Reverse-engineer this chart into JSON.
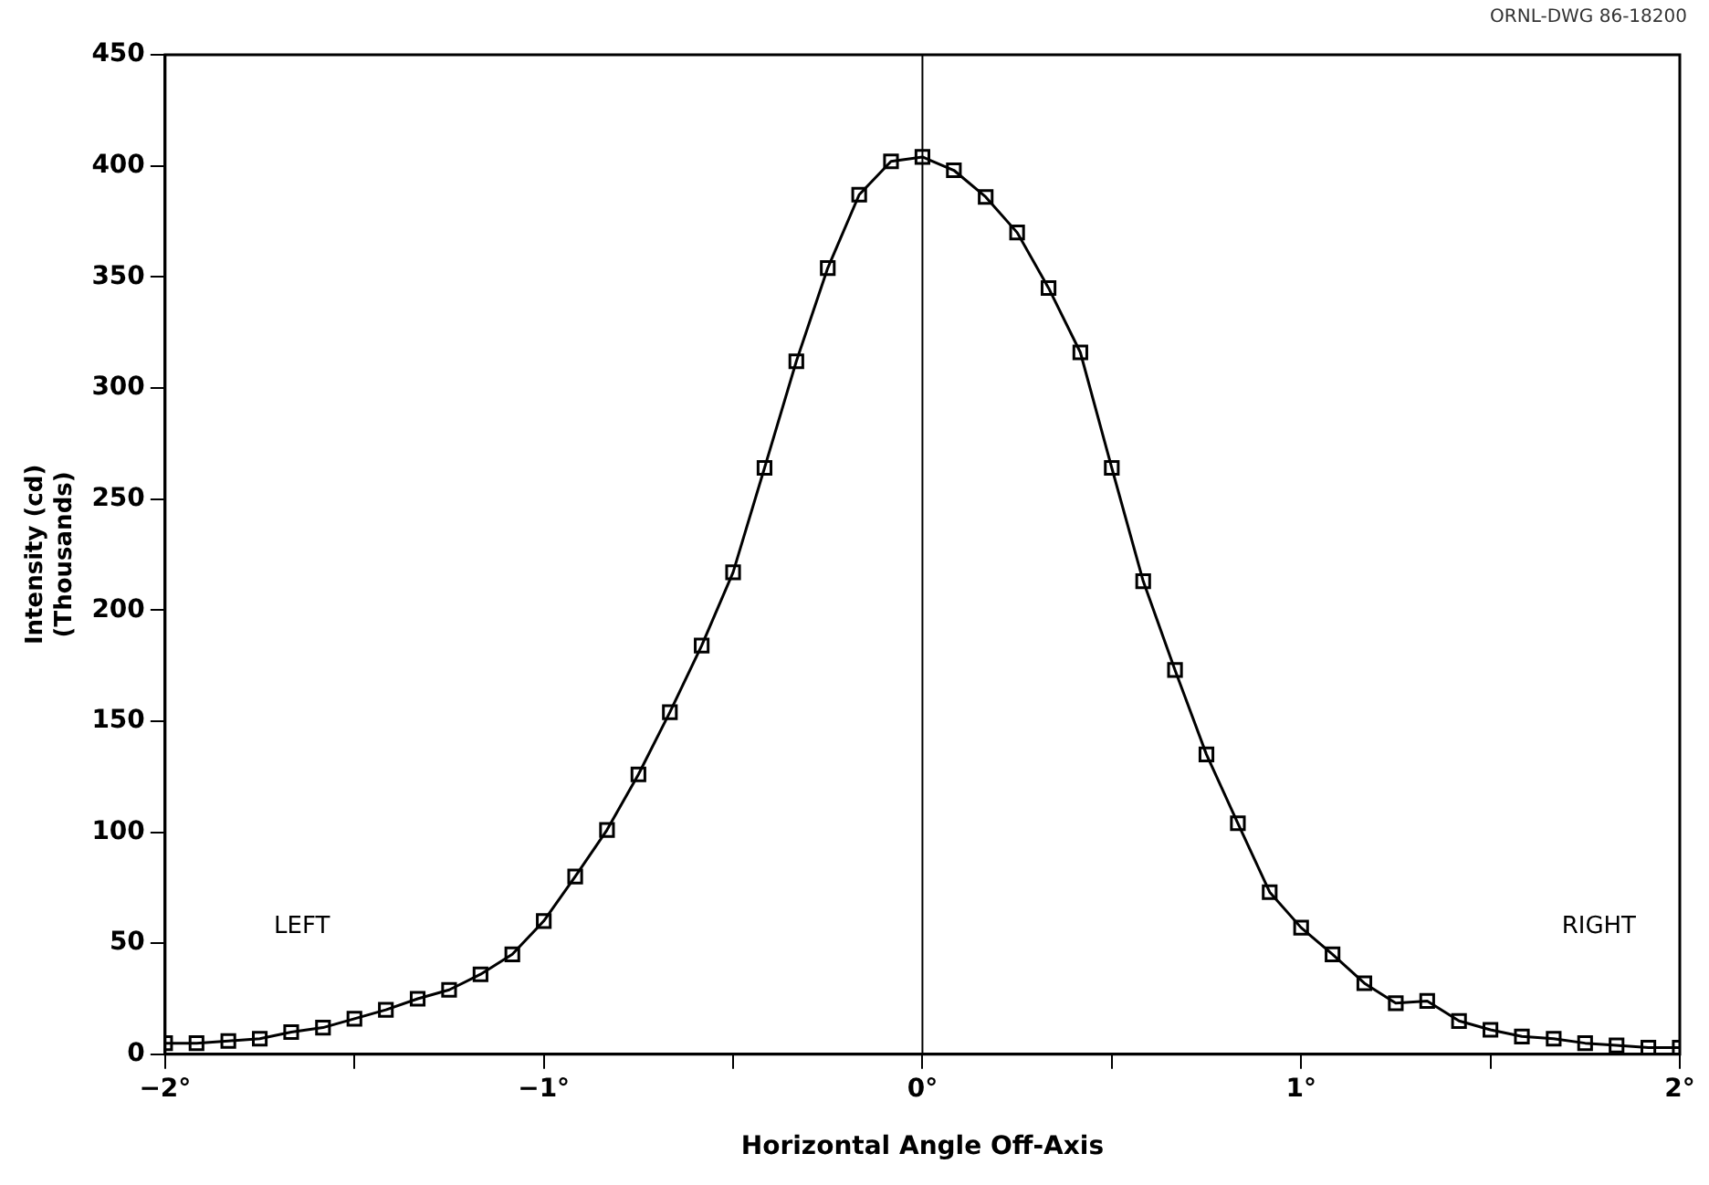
{
  "chart_data": {
    "type": "line",
    "xlabel": "Horizontal Angle Off-Axis",
    "ylabel": "Intensity (cd)\n(Thousands)",
    "x": [
      -2,
      -1.917,
      -1.833,
      -1.75,
      -1.667,
      -1.583,
      -1.5,
      -1.417,
      -1.333,
      -1.25,
      -1.167,
      -1.083,
      -1,
      -0.917,
      -0.833,
      -0.75,
      -0.667,
      -0.583,
      -0.5,
      -0.417,
      -0.333,
      -0.25,
      -0.167,
      -0.083,
      0,
      0.083,
      0.167,
      0.25,
      0.333,
      0.417,
      0.5,
      0.583,
      0.667,
      0.75,
      0.833,
      0.917,
      1,
      1.083,
      1.167,
      1.25,
      1.333,
      1.417,
      1.5,
      1.583,
      1.667,
      1.75,
      1.833,
      1.917,
      2
    ],
    "series": [
      {
        "color": "#000000",
        "values": [
          5,
          5,
          6,
          7,
          10,
          12,
          16,
          20,
          25,
          29,
          36,
          45,
          60,
          80,
          101,
          126,
          154,
          184,
          217,
          264,
          312,
          354,
          387,
          402,
          404,
          398,
          386,
          370,
          345,
          316,
          264,
          213,
          173,
          135,
          104,
          73,
          57,
          45,
          32,
          23,
          24,
          15,
          11,
          8,
          7,
          5,
          4,
          3,
          3
        ]
      }
    ],
    "xlim": [
      -2,
      2
    ],
    "xticks": [
      {
        "value": -2,
        "label": "−2°"
      },
      {
        "value": -1.5,
        "label": null
      },
      {
        "value": -1,
        "label": "−1°"
      },
      {
        "value": -0.5,
        "label": null
      },
      {
        "value": 0,
        "label": "0°"
      },
      {
        "value": 0.5,
        "label": null
      },
      {
        "value": 1,
        "label": "1°"
      },
      {
        "value": 1.5,
        "label": null
      },
      {
        "value": 2,
        "label": "2°"
      }
    ],
    "ylim": [
      0,
      450
    ],
    "yticks": [
      0,
      50,
      100,
      150,
      200,
      250,
      300,
      350,
      400,
      450
    ],
    "ref_lines": [
      {
        "axis": "x",
        "value": 0
      }
    ],
    "annotations": [
      "LEFT",
      "RIGHT",
      "ORNL-DWG 86-18200"
    ],
    "grid": false,
    "legend": false,
    "marker": "square",
    "line_style": "solid"
  }
}
